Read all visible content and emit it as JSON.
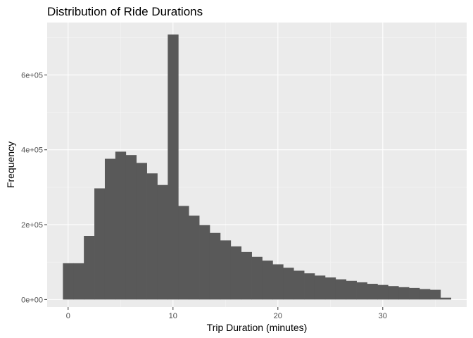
{
  "chart_data": {
    "type": "bar",
    "title": "Distribution of Ride Durations",
    "xlabel": "Trip Duration (minutes)",
    "ylabel": "Frequency",
    "xlim": [
      -2,
      38
    ],
    "ylim": [
      -20000,
      740000
    ],
    "x_ticks": [
      0,
      10,
      20,
      30
    ],
    "x_minor_ticks": [
      5,
      15,
      25,
      35
    ],
    "y_ticks": [
      0,
      200000,
      400000,
      600000
    ],
    "y_tick_labels": [
      "0e+00",
      "2e+05",
      "4e+05",
      "6e+05"
    ],
    "y_minor_ticks": [
      100000,
      300000,
      500000,
      700000
    ],
    "bin_width": 1,
    "x": [
      0,
      1,
      2,
      3,
      4,
      5,
      6,
      7,
      8,
      9,
      10,
      11,
      12,
      13,
      14,
      15,
      16,
      17,
      18,
      19,
      20,
      21,
      22,
      23,
      24,
      25,
      26,
      27,
      28,
      29,
      30,
      31,
      32,
      33,
      34,
      35,
      36
    ],
    "values": [
      97000,
      97000,
      170000,
      297000,
      376000,
      395000,
      386000,
      365000,
      337000,
      306000,
      708000,
      250000,
      224000,
      199000,
      178000,
      158000,
      142000,
      127000,
      114000,
      104000,
      94000,
      85000,
      77000,
      70000,
      64000,
      59000,
      54000,
      50000,
      46000,
      42000,
      39000,
      36000,
      33000,
      31000,
      28000,
      26000,
      5000
    ],
    "grid": true,
    "legend": "none",
    "colors": {
      "panel_background": "#ebebeb",
      "grid_major": "#ffffff",
      "grid_minor": "#f5f5f5",
      "bar_fill": "#595959",
      "tick_text": "#4d4d4d",
      "text": "#000000"
    }
  }
}
